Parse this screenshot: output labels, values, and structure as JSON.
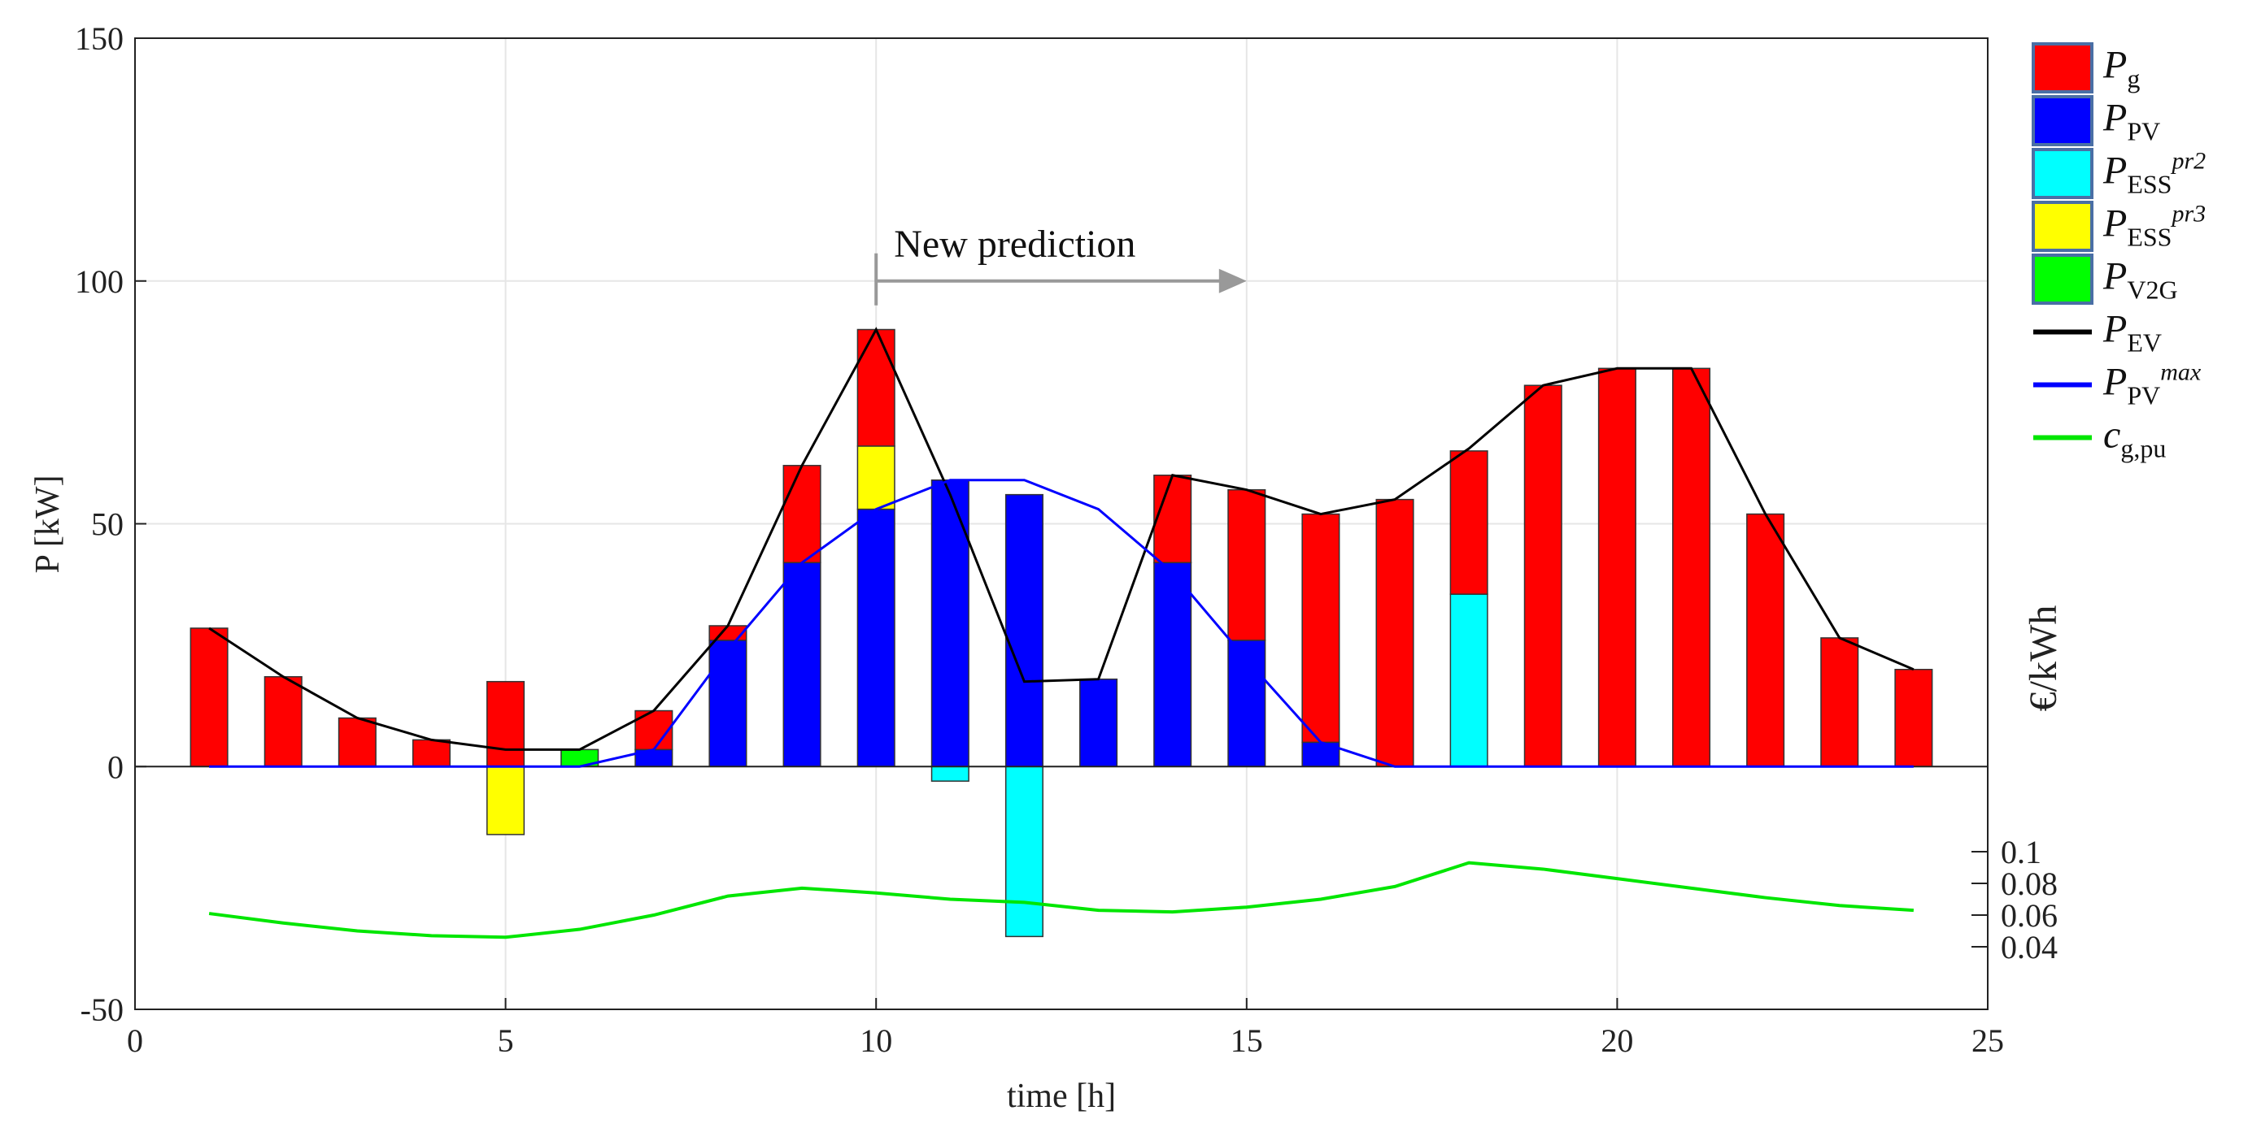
{
  "chart_data": {
    "type": "bar",
    "xlabel": "time [h]",
    "ylabel": "P [kW]",
    "y2label": "€/kWh",
    "xlim": [
      0,
      25
    ],
    "ylim": [
      -50,
      150
    ],
    "xticks": [
      "0",
      "5",
      "10",
      "15",
      "20",
      "25"
    ],
    "yticks": [
      "-50",
      "0",
      "50",
      "100",
      "150"
    ],
    "y2ticks": [
      "0.04",
      "0.06",
      "0.08",
      "0.1"
    ],
    "grid": true,
    "annotation": {
      "text": "New prediction",
      "x_start": 10,
      "x_end": 15,
      "y": 100
    },
    "hours": [
      1,
      2,
      3,
      4,
      5,
      6,
      7,
      8,
      9,
      10,
      11,
      12,
      13,
      14,
      15,
      16,
      17,
      18,
      19,
      20,
      21,
      22,
      23,
      24
    ],
    "bar_stacks": [
      {
        "name": "P_PV",
        "color": "#0000ff",
        "values": [
          0,
          0,
          0,
          0,
          0,
          0,
          3.5,
          26,
          42,
          53,
          59,
          56,
          18,
          42,
          26,
          5,
          0,
          0,
          0,
          0,
          0,
          0,
          0,
          0
        ]
      },
      {
        "name": "P_ESS_pr2",
        "color": "#00ffff",
        "values": [
          0,
          0,
          0,
          0,
          0,
          0,
          0,
          0,
          0,
          0,
          -3,
          -35,
          0,
          0,
          0,
          0,
          0,
          35.5,
          0,
          0,
          0,
          0,
          0,
          0
        ]
      },
      {
        "name": "P_ESS_pr3",
        "color": "#ffff00",
        "values": [
          0,
          0,
          0,
          0,
          -14,
          0,
          0,
          0,
          0,
          13,
          0,
          0,
          0,
          0,
          0,
          0,
          0,
          0,
          0,
          0,
          0,
          0,
          0,
          0
        ]
      },
      {
        "name": "P_V2G",
        "color": "#00ff00",
        "values": [
          0,
          0,
          0,
          0,
          0,
          3.5,
          0,
          0,
          0,
          0,
          0,
          0,
          0,
          0,
          0,
          0,
          0,
          0,
          0,
          0,
          0,
          0,
          0,
          0
        ]
      },
      {
        "name": "P_g",
        "color": "#ff0000",
        "values": [
          28.5,
          18.5,
          10,
          5.5,
          17.5,
          0,
          8,
          3,
          20,
          24,
          0,
          0,
          0,
          18,
          31,
          47,
          55,
          29.5,
          78.5,
          82,
          82,
          52,
          26.5,
          20
        ]
      }
    ],
    "lines": [
      {
        "name": "P_EV",
        "color": "#000000",
        "x": [
          1,
          2,
          3,
          4,
          5,
          6,
          7,
          8,
          9,
          10,
          11,
          12,
          13,
          14,
          15,
          16,
          17,
          18,
          19,
          20,
          21,
          22,
          23,
          24
        ],
        "values": [
          28.5,
          18.5,
          10,
          5.5,
          3.5,
          3.5,
          11.5,
          29,
          62,
          90,
          56,
          17.5,
          18,
          60,
          57,
          52,
          55,
          65.5,
          78.5,
          82,
          82,
          52,
          26.5,
          20
        ]
      },
      {
        "name": "P_PV_max",
        "color": "#0000ff",
        "x": [
          1,
          2,
          3,
          4,
          5,
          6,
          7,
          8,
          9,
          10,
          11,
          12,
          13,
          14,
          15,
          16,
          17,
          18,
          19,
          20,
          21,
          22,
          23,
          24
        ],
        "values": [
          0,
          0,
          0,
          0,
          0,
          0,
          3.5,
          24,
          42,
          53,
          59,
          59,
          53,
          40,
          22,
          5,
          0,
          0,
          0,
          0,
          0,
          0,
          0,
          0
        ]
      }
    ],
    "price_line": {
      "name": "c_g_pu",
      "color": "#00e600",
      "x": [
        1,
        2,
        3,
        4,
        5,
        6,
        7,
        8,
        9,
        10,
        11,
        12,
        13,
        14,
        15,
        16,
        17,
        18,
        19,
        20,
        21,
        22,
        23,
        24
      ],
      "values": [
        0.061,
        0.055,
        0.05,
        0.047,
        0.046,
        0.051,
        0.06,
        0.072,
        0.077,
        0.074,
        0.07,
        0.068,
        0.063,
        0.062,
        0.065,
        0.07,
        0.078,
        0.093,
        0.089,
        0.083,
        0.077,
        0.071,
        0.066,
        0.063
      ]
    },
    "legend": [
      {
        "id": "pg",
        "kind": "patch",
        "color": "#ff0000",
        "sym": "P",
        "sub": "g",
        "sup": ""
      },
      {
        "id": "ppv",
        "kind": "patch",
        "color": "#0000ff",
        "sym": "P",
        "sub": "PV",
        "sup": ""
      },
      {
        "id": "pess2",
        "kind": "patch",
        "color": "#00ffff",
        "sym": "P",
        "sub": "ESS",
        "sup": "pr2"
      },
      {
        "id": "pess3",
        "kind": "patch",
        "color": "#ffff00",
        "sym": "P",
        "sub": "ESS",
        "sup": "pr3"
      },
      {
        "id": "pv2g",
        "kind": "patch",
        "color": "#00ff00",
        "sym": "P",
        "sub": "V2G",
        "sup": ""
      },
      {
        "id": "pev",
        "kind": "line",
        "color": "#000000",
        "sym": "P",
        "sub": "EV",
        "sup": ""
      },
      {
        "id": "ppvmax",
        "kind": "line",
        "color": "#0000ff",
        "sym": "P",
        "sub": "PV",
        "sup": "max"
      },
      {
        "id": "cgpu",
        "kind": "line",
        "color": "#00e600",
        "sym": "c",
        "sub": "g,pu",
        "sup": ""
      }
    ]
  }
}
